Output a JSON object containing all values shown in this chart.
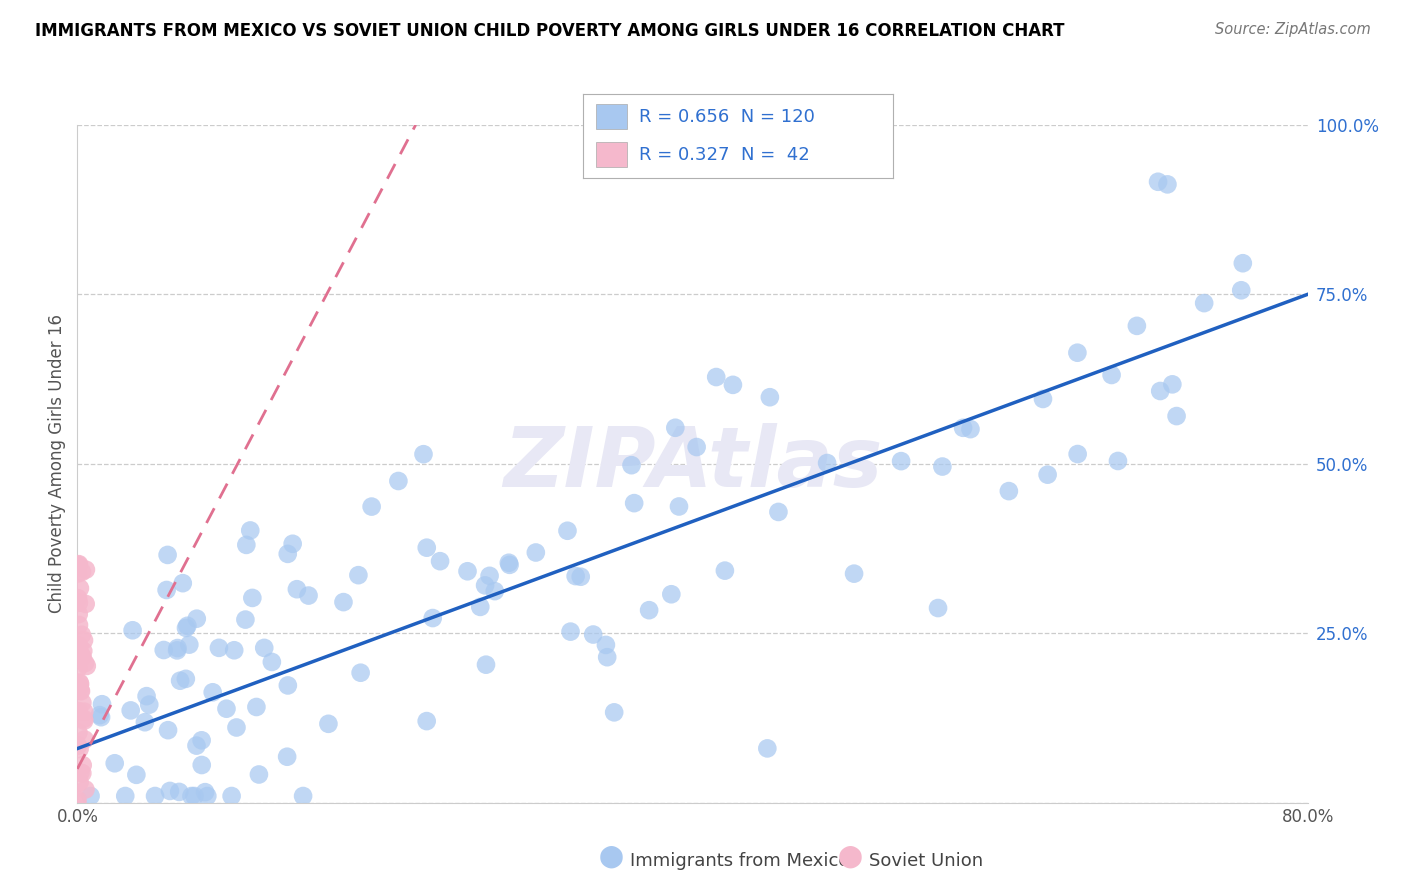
{
  "title": "IMMIGRANTS FROM MEXICO VS SOVIET UNION CHILD POVERTY AMONG GIRLS UNDER 16 CORRELATION CHART",
  "source": "Source: ZipAtlas.com",
  "ylabel": "Child Poverty Among Girls Under 16",
  "legend_label1": "Immigrants from Mexico",
  "legend_label2": "Soviet Union",
  "R1": 0.656,
  "N1": 120,
  "R2": 0.327,
  "N2": 42,
  "color_mexico": "#a8c8f0",
  "color_soviet": "#f5b8cc",
  "color_line_mexico": "#2060c0",
  "color_line_soviet": "#e07090",
  "color_tick_y": "#3070d0",
  "xlim": [
    0.0,
    0.8
  ],
  "ylim": [
    0.0,
    1.0
  ],
  "line_mexico_x0": 0.0,
  "line_mexico_y0": 0.08,
  "line_mexico_x1": 0.8,
  "line_mexico_y1": 0.75,
  "line_soviet_x0": 0.0,
  "line_soviet_y0": 0.05,
  "line_soviet_x1": 0.22,
  "line_soviet_y1": 1.0,
  "watermark_text": "ZIPAtlas",
  "watermark_color": "#e8e8f5",
  "grid_color": "#cccccc",
  "spine_color": "#cccccc",
  "title_fontsize": 12,
  "tick_fontsize": 12,
  "ylabel_fontsize": 12,
  "dot_size": 180
}
